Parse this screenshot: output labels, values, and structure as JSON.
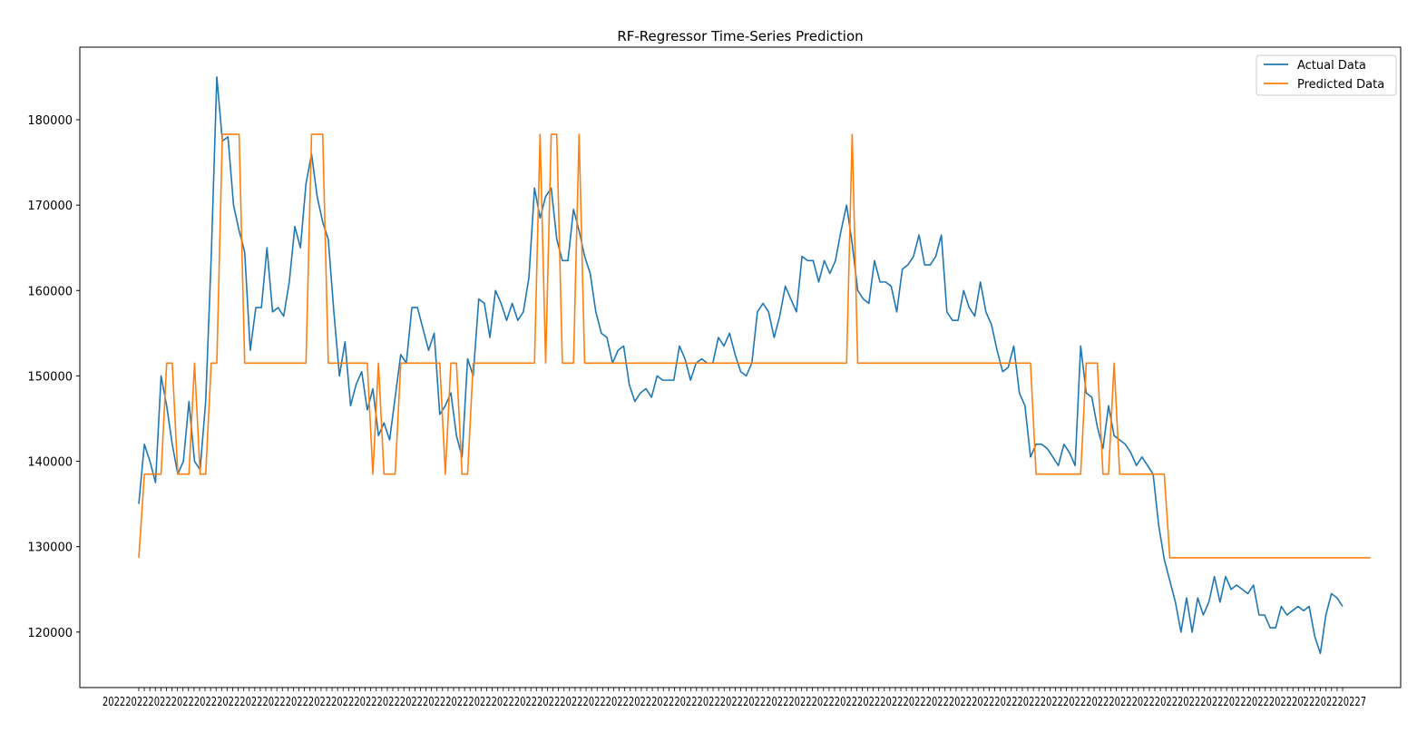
{
  "chart_data": {
    "type": "line",
    "title": "RF-Regressor Time-Series Prediction",
    "xlabel": "",
    "ylabel": "",
    "ylim": [
      113500,
      188500
    ],
    "yticks": [
      120000,
      130000,
      140000,
      150000,
      160000,
      170000,
      180000
    ],
    "grid": false,
    "legend_position": "top-right",
    "x_tick_count": 219,
    "x_tick_label_visible_fragment": "2022",
    "x_tick_label_visible_end": "7",
    "series": [
      {
        "name": "Actual Data",
        "color": "#1f77b4",
        "values": [
          135000,
          142000,
          140000,
          137500,
          150000,
          146500,
          142000,
          138500,
          140000,
          147000,
          140000,
          139000,
          147000,
          164000,
          185000,
          177500,
          178000,
          170000,
          167000,
          164500,
          153000,
          158000,
          158000,
          165000,
          157500,
          158000,
          157000,
          161000,
          167500,
          165000,
          172500,
          176000,
          171000,
          168000,
          166000,
          157500,
          150000,
          154000,
          146500,
          149000,
          150500,
          146000,
          148500,
          143000,
          144500,
          142500,
          147500,
          152500,
          151500,
          158000,
          158000,
          155500,
          153000,
          155000,
          145500,
          146500,
          148000,
          143000,
          140500,
          152000,
          150000,
          159000,
          158500,
          154500,
          160000,
          158500,
          156500,
          158500,
          156500,
          157500,
          161500,
          172000,
          168500,
          171000,
          172000,
          166000,
          163500,
          163500,
          169500,
          167000,
          164000,
          162000,
          157500,
          155000,
          154500,
          151500,
          153000,
          153500,
          149000,
          147000,
          148000,
          148500,
          147500,
          150000,
          149500,
          149500,
          149500,
          153500,
          152000,
          149500,
          151500,
          152000,
          151500,
          151500,
          154500,
          153500,
          155000,
          152500,
          150500,
          150000,
          151500,
          157500,
          158500,
          157500,
          154500,
          157000,
          160500,
          159000,
          157500,
          164000,
          163500,
          163500,
          161000,
          163500,
          162000,
          163500,
          167000,
          170000,
          165500,
          160000,
          159000,
          158500,
          163500,
          161000,
          161000,
          160500,
          157500,
          162500,
          163000,
          164000,
          166500,
          163000,
          163000,
          164000,
          166500,
          157500,
          156500,
          156500,
          160000,
          158000,
          157000,
          161000,
          157500,
          156000,
          153000,
          150500,
          151000,
          153500,
          148000,
          146500,
          140500,
          142000,
          142000,
          141500,
          140500,
          139500,
          142000,
          141000,
          139500,
          153500,
          148000,
          147500,
          144000,
          141500,
          146500,
          143000,
          142500,
          142000,
          141000,
          139500,
          140500,
          139500,
          138500,
          132500,
          128500,
          126000,
          123500,
          120000,
          124000,
          120000,
          124000,
          122000,
          123500,
          126500,
          123500,
          126500,
          125000,
          125500,
          125000,
          124500,
          125500,
          122000,
          122000,
          120500,
          120500,
          123000,
          122000,
          122500,
          123000,
          122500,
          123000,
          119500,
          117500,
          122000,
          124500,
          124000,
          123000
        ]
      },
      {
        "name": "Predicted Data",
        "color": "#ff7f0e",
        "values": [
          128700,
          138500,
          138500,
          138500,
          138500,
          151500,
          151500,
          138500,
          138500,
          138500,
          151500,
          138500,
          138500,
          151500,
          151500,
          178300,
          178300,
          178300,
          178300,
          151500,
          151500,
          151500,
          151500,
          151500,
          151500,
          151500,
          151500,
          151500,
          151500,
          151500,
          151500,
          178300,
          178300,
          178300,
          151500,
          151500,
          151500,
          151500,
          151500,
          151500,
          151500,
          151500,
          138500,
          151500,
          138500,
          138500,
          138500,
          151500,
          151500,
          151500,
          151500,
          151500,
          151500,
          151500,
          151500,
          138500,
          151500,
          151500,
          138500,
          138500,
          151500,
          151500,
          151500,
          151500,
          151500,
          151500,
          151500,
          151500,
          151500,
          151500,
          151500,
          151500,
          178300,
          151500,
          178300,
          178300,
          151500,
          151500,
          151500,
          178300,
          151500,
          151500,
          151500,
          151500,
          151500,
          151500,
          151500,
          151500,
          151500,
          151500,
          151500,
          151500,
          151500,
          151500,
          151500,
          151500,
          151500,
          151500,
          151500,
          151500,
          151500,
          151500,
          151500,
          151500,
          151500,
          151500,
          151500,
          151500,
          151500,
          151500,
          151500,
          151500,
          151500,
          151500,
          151500,
          151500,
          151500,
          151500,
          151500,
          151500,
          151500,
          151500,
          151500,
          151500,
          151500,
          151500,
          151500,
          151500,
          178300,
          151500,
          151500,
          151500,
          151500,
          151500,
          151500,
          151500,
          151500,
          151500,
          151500,
          151500,
          151500,
          151500,
          151500,
          151500,
          151500,
          151500,
          151500,
          151500,
          151500,
          151500,
          151500,
          151500,
          151500,
          151500,
          151500,
          151500,
          151500,
          151500,
          151500,
          151500,
          151500,
          138500,
          138500,
          138500,
          138500,
          138500,
          138500,
          138500,
          138500,
          138500,
          151500,
          151500,
          151500,
          138500,
          138500,
          151500,
          138500,
          138500,
          138500,
          138500,
          138500,
          138500,
          138500,
          138500,
          138500,
          128700,
          128700,
          128700,
          128700,
          128700,
          128700,
          128700,
          128700,
          128700,
          128700,
          128700,
          128700,
          128700,
          128700,
          128700,
          128700,
          128700,
          128700,
          128700,
          128700,
          128700,
          128700,
          128700,
          128700,
          128700,
          128700,
          128700,
          128700,
          128700,
          128700,
          128700,
          128700,
          128700,
          128700,
          128700,
          128700,
          128700
        ]
      }
    ]
  }
}
